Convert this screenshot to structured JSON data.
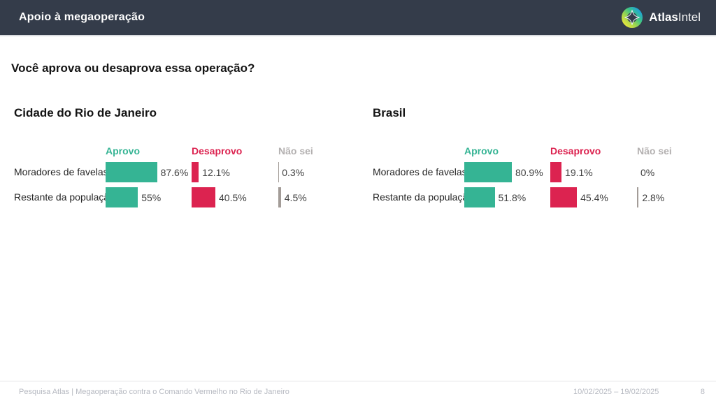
{
  "header": {
    "title": "Apoio à megaoperação",
    "brand_bold": "Atlas",
    "brand_light": "Intel"
  },
  "question": "Você aprova ou desaprova essa operação?",
  "colors": {
    "approve": "#35b494",
    "disapprove": "#dc2350",
    "neutral": "#a39c98",
    "header_bg": "#343c4a"
  },
  "panels": [
    {
      "title": "Cidade do Rio de Janeiro",
      "columns": [
        "Aprovo",
        "Desaprovo",
        "Não sei"
      ],
      "rows": [
        {
          "label": "Moradores de favelas",
          "cells": [
            {
              "value": 87.6,
              "text": "87.6%"
            },
            {
              "value": 12.1,
              "text": "12.1%"
            },
            {
              "value": 0.3,
              "text": "0.3%"
            }
          ]
        },
        {
          "label": "Restante da população",
          "cells": [
            {
              "value": 55,
              "text": "55%"
            },
            {
              "value": 40.5,
              "text": "40.5%"
            },
            {
              "value": 4.5,
              "text": "4.5%"
            }
          ]
        }
      ]
    },
    {
      "title": "Brasil",
      "columns": [
        "Aprovo",
        "Desaprovo",
        "Não sei"
      ],
      "rows": [
        {
          "label": "Moradores de favelas",
          "cells": [
            {
              "value": 80.9,
              "text": "80.9%"
            },
            {
              "value": 19.1,
              "text": "19.1%"
            },
            {
              "value": 0,
              "text": "0%"
            }
          ]
        },
        {
          "label": "Restante da população",
          "cells": [
            {
              "value": 51.8,
              "text": "51.8%"
            },
            {
              "value": 45.4,
              "text": "45.4%"
            },
            {
              "value": 2.8,
              "text": "2.8%"
            }
          ]
        }
      ]
    }
  ],
  "chart_data": [
    {
      "type": "bar",
      "title": "Cidade do Rio de Janeiro",
      "categories": [
        "Moradores de favelas",
        "Restante da população"
      ],
      "series": [
        {
          "name": "Aprovo",
          "values": [
            87.6,
            55
          ]
        },
        {
          "name": "Desaprovo",
          "values": [
            12.1,
            40.5
          ]
        },
        {
          "name": "Não sei",
          "values": [
            0.3,
            4.5
          ]
        }
      ],
      "xlim": [
        0,
        100
      ],
      "unit": "%",
      "orientation": "horizontal",
      "grid": false
    },
    {
      "type": "bar",
      "title": "Brasil",
      "categories": [
        "Moradores de favelas",
        "Restante da população"
      ],
      "series": [
        {
          "name": "Aprovo",
          "values": [
            80.9,
            51.8
          ]
        },
        {
          "name": "Desaprovo",
          "values": [
            19.1,
            45.4
          ]
        },
        {
          "name": "Não sei",
          "values": [
            0,
            2.8
          ]
        }
      ],
      "xlim": [
        0,
        100
      ],
      "unit": "%",
      "orientation": "horizontal",
      "grid": false
    }
  ],
  "footer": {
    "source": "Pesquisa Atlas | Megaoperação contra o Comando Vermelho no Rio de Janeiro",
    "date_range": "10/02/2025 – 19/02/2025",
    "page": "8"
  }
}
